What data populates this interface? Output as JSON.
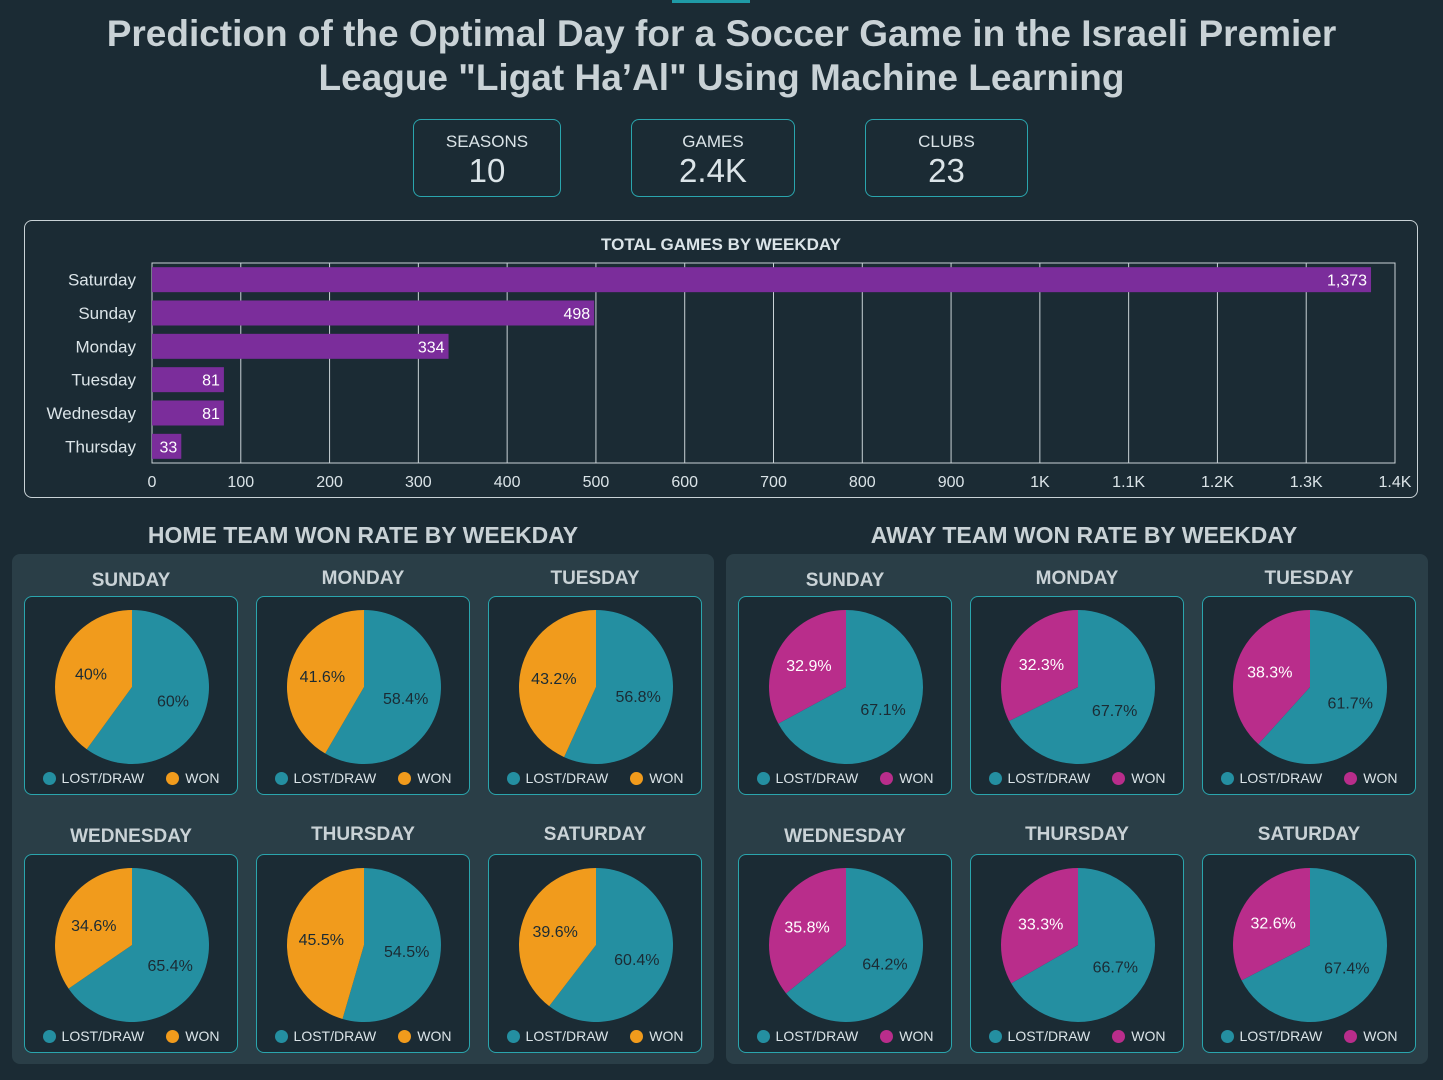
{
  "title_line1": "Prediction of the Optimal Day for a Soccer Game in the Israeli Premier",
  "title_line2": "League \"Ligat Ha’Al\" Using Machine Learning",
  "kpis": [
    {
      "label": "SEASONS",
      "value": "10"
    },
    {
      "label": "GAMES",
      "value": "2.4K"
    },
    {
      "label": "CLUBS",
      "value": "23"
    }
  ],
  "colors": {
    "bar": "#7b2d9b",
    "lost": "#248fa1",
    "home_won": "#f19b1c",
    "away_won": "#b92d8b"
  },
  "chart_data": [
    {
      "type": "bar",
      "orientation": "horizontal",
      "title": "TOTAL GAMES BY WEEKDAY",
      "categories": [
        "Saturday",
        "Sunday",
        "Monday",
        "Tuesday",
        "Wednesday",
        "Thursday"
      ],
      "values": [
        1373,
        498,
        334,
        81,
        81,
        33
      ],
      "value_labels": [
        "1,373",
        "498",
        "334",
        "81",
        "81",
        "33"
      ],
      "xlim": [
        0,
        1400
      ],
      "tick_values": [
        0,
        100,
        200,
        300,
        400,
        500,
        600,
        700,
        800,
        900,
        1000,
        1100,
        1200,
        1300,
        1400
      ],
      "tick_labels": [
        "0",
        "100",
        "200",
        "300",
        "400",
        "500",
        "600",
        "700",
        "800",
        "900",
        "1K",
        "1.1K",
        "1.2K",
        "1.3K",
        "1.4K"
      ],
      "grid": true
    },
    {
      "type": "pie",
      "title": "HOME TEAM WON RATE BY WEEKDAY",
      "legend": [
        "LOST/DRAW",
        "WON"
      ],
      "panels": [
        {
          "day": "SUNDAY",
          "lost": 60,
          "won": 40,
          "lost_label": "60%",
          "won_label": "40%"
        },
        {
          "day": "MONDAY",
          "lost": 58.4,
          "won": 41.6,
          "lost_label": "58.4%",
          "won_label": "41.6%"
        },
        {
          "day": "TUESDAY",
          "lost": 56.8,
          "won": 43.2,
          "lost_label": "56.8%",
          "won_label": "43.2%"
        },
        {
          "day": "WEDNESDAY",
          "lost": 65.4,
          "won": 34.6,
          "lost_label": "65.4%",
          "won_label": "34.6%"
        },
        {
          "day": "THURSDAY",
          "lost": 54.5,
          "won": 45.5,
          "lost_label": "54.5%",
          "won_label": "45.5%"
        },
        {
          "day": "SATURDAY",
          "lost": 60.4,
          "won": 39.6,
          "lost_label": "60.4%",
          "won_label": "39.6%"
        }
      ]
    },
    {
      "type": "pie",
      "title": "AWAY TEAM WON RATE BY WEEKDAY",
      "legend": [
        "LOST/DRAW",
        "WON"
      ],
      "panels": [
        {
          "day": "SUNDAY",
          "lost": 67.1,
          "won": 32.9,
          "lost_label": "67.1%",
          "won_label": "32.9%"
        },
        {
          "day": "MONDAY",
          "lost": 67.7,
          "won": 32.3,
          "lost_label": "67.7%",
          "won_label": "32.3%"
        },
        {
          "day": "TUESDAY",
          "lost": 61.7,
          "won": 38.3,
          "lost_label": "61.7%",
          "won_label": "38.3%"
        },
        {
          "day": "WEDNESDAY",
          "lost": 64.2,
          "won": 35.8,
          "lost_label": "64.2%",
          "won_label": "35.8%"
        },
        {
          "day": "THURSDAY",
          "lost": 66.7,
          "won": 33.3,
          "lost_label": "66.7%",
          "won_label": "33.3%"
        },
        {
          "day": "SATURDAY",
          "lost": 67.4,
          "won": 32.6,
          "lost_label": "67.4%",
          "won_label": "32.6%"
        }
      ]
    }
  ]
}
